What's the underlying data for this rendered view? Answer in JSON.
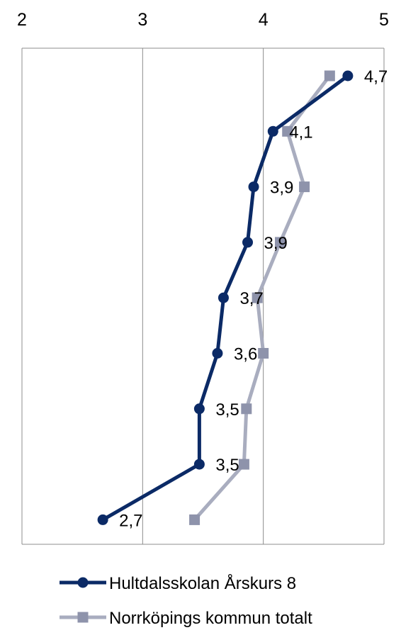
{
  "chart_data": {
    "type": "line",
    "orientation": "horizontal-values",
    "xlim": [
      2,
      5
    ],
    "x_ticks": [
      "2",
      "3",
      "4",
      "5"
    ],
    "grid": true,
    "legend_position": "bottom",
    "series": [
      {
        "name": "Hultdalsskolan Årskurs 8",
        "color": "#0b2a66",
        "marker": "circle",
        "values": [
          4.7,
          4.08,
          3.92,
          3.87,
          3.67,
          3.62,
          3.47,
          3.47,
          2.67
        ],
        "labels": [
          "4,7",
          "4,1",
          "3,9",
          "3,9",
          "3,7",
          "3,6",
          "3,5",
          "3,5",
          "2,7"
        ]
      },
      {
        "name": "Norrköpings kommun totalt",
        "color": "#a9adbf",
        "marker": "square",
        "values": [
          4.55,
          4.2,
          4.34,
          4.14,
          3.95,
          4.0,
          3.86,
          3.84,
          3.43
        ]
      }
    ]
  }
}
